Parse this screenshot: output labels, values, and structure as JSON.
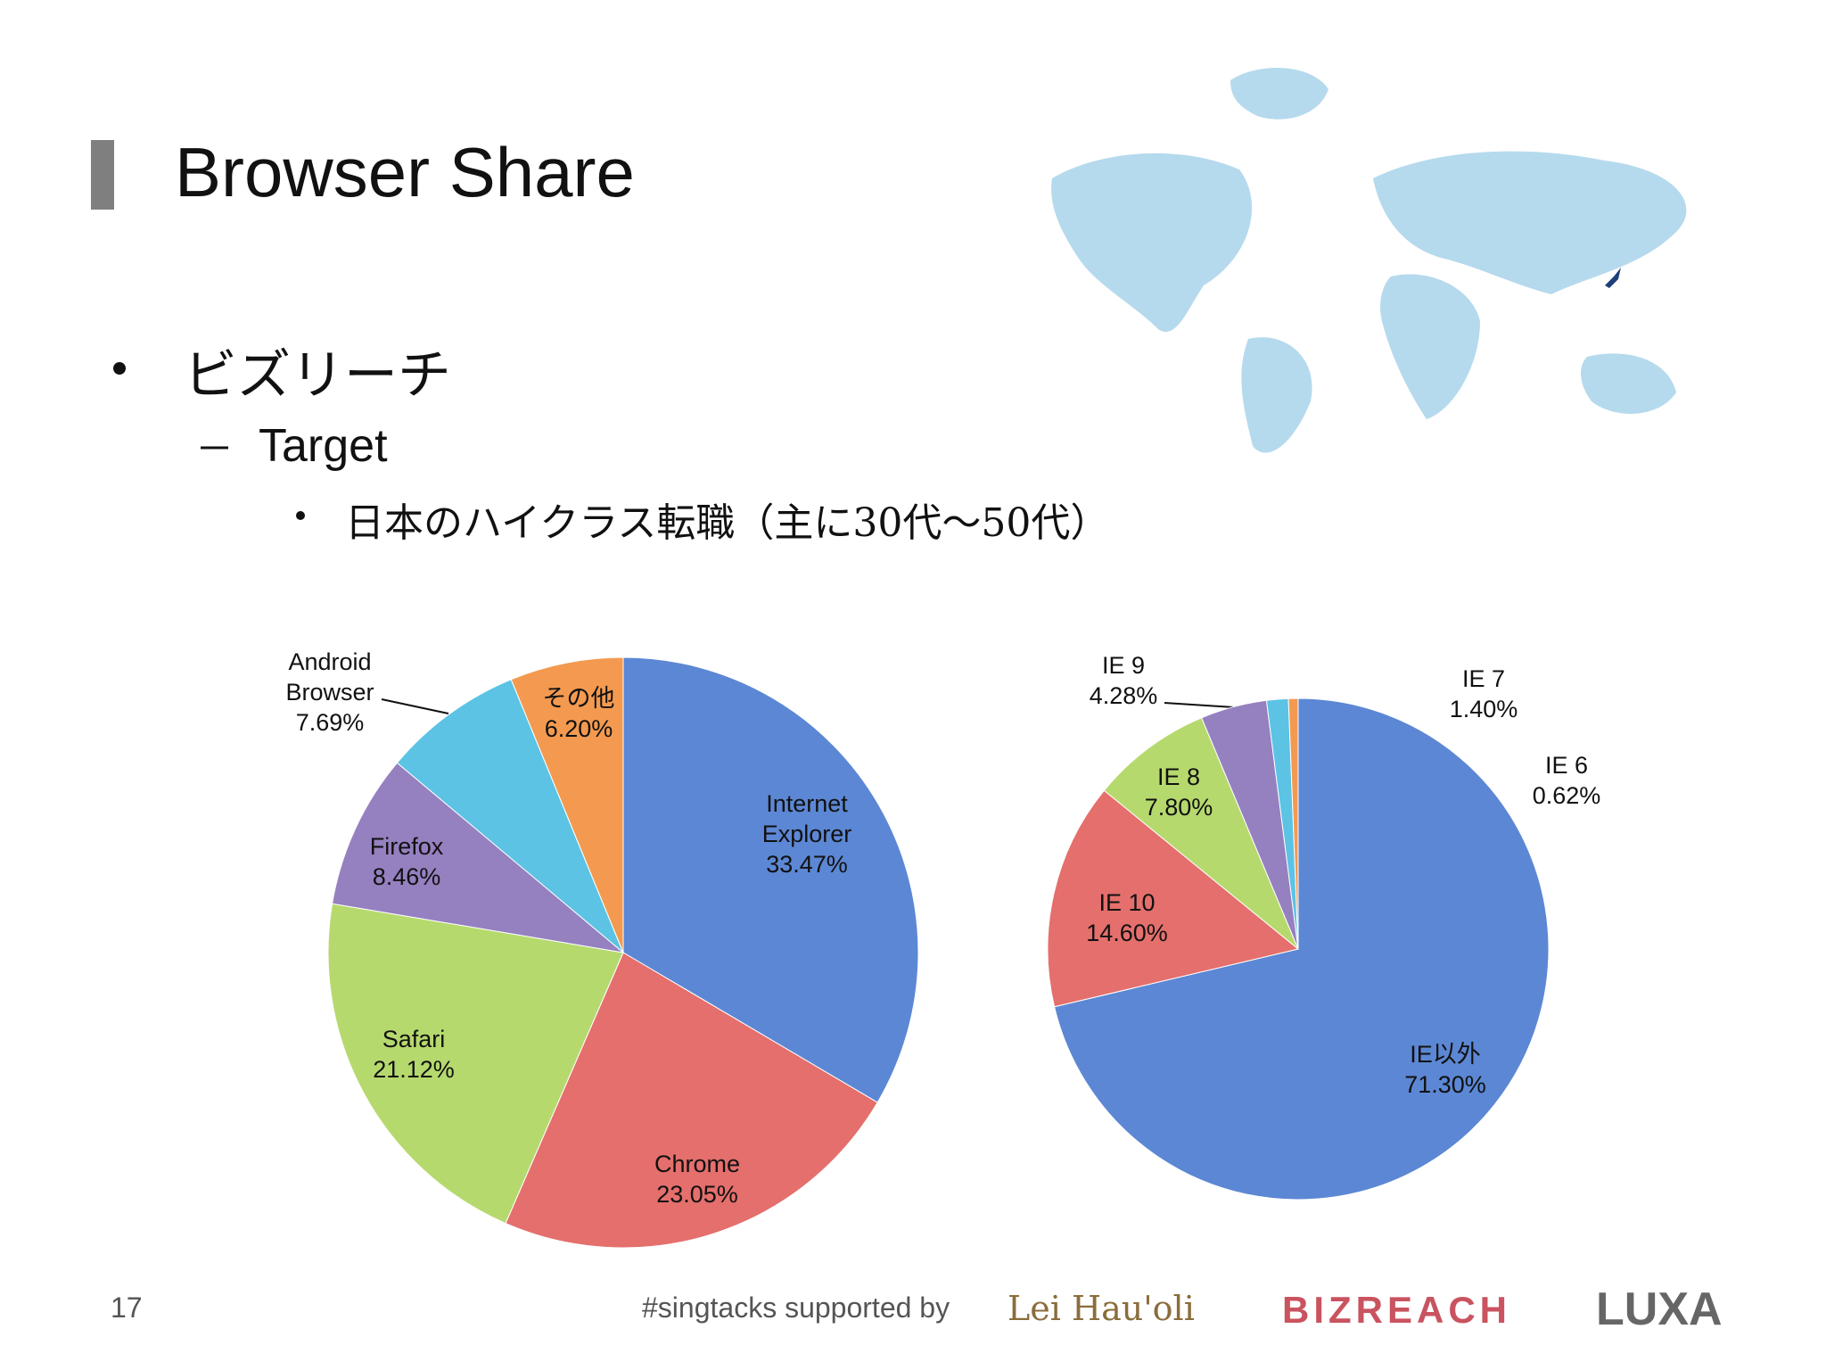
{
  "slide": {
    "title": "Browser Share",
    "bullet": "ビズリーチ",
    "sub_bullet": "Target",
    "sub_sub_bullet": "日本のハイクラス転職（主に30代〜50代）",
    "page_number": "17",
    "footer": "#singtacks supported by",
    "logos": [
      "Lei Hau'oli",
      "BIZREACH",
      "LUXA"
    ]
  },
  "chart_data": [
    {
      "type": "pie",
      "categories": [
        "Internet Explorer",
        "Chrome",
        "Safari",
        "Firefox",
        "Android Browser",
        "その他"
      ],
      "values": [
        33.47,
        23.05,
        21.12,
        8.46,
        7.69,
        6.2
      ],
      "value_labels": [
        "33.47%",
        "23.05%",
        "21.12%",
        "8.46%",
        "7.69%",
        "6.20%"
      ],
      "colors": [
        "#5c87d4",
        "#e46f6c",
        "#b6d96e",
        "#9580c0",
        "#5cc3e4",
        "#f39a50"
      ]
    },
    {
      "type": "pie",
      "categories": [
        "IE以外",
        "IE 10",
        "IE 8",
        "IE 9",
        "IE 7",
        "IE 6"
      ],
      "values": [
        71.3,
        14.6,
        7.8,
        4.28,
        1.4,
        0.62
      ],
      "value_labels": [
        "71.30%",
        "14.60%",
        "7.80%",
        "4.28%",
        "1.40%",
        "0.62%"
      ],
      "colors": [
        "#5c87d4",
        "#e46f6c",
        "#b6d96e",
        "#9580c0",
        "#5cc3e4",
        "#f39a50"
      ]
    }
  ]
}
